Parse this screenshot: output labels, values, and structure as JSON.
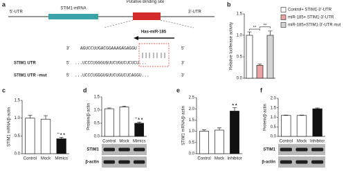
{
  "diagram": {
    "panel": "a",
    "utr5": "5'-UTR",
    "gene": "STIM1-mRNA",
    "site": "Putative Binding site",
    "utr3": "3'-UTR",
    "mirna": "Has-miR-185",
    "mirna_row": {
      "left": "3'",
      "seq": "AGUCCUUGACGGAAAGAGAGGU",
      "right": "5'"
    },
    "rows": [
      {
        "name": "STIM1 UTR",
        "left": "5'",
        "seq": "...UCCCUGGGUGUUCUGUCUCUCU...",
        "right": "3'"
      },
      {
        "name": "STIM1 UTR –mut",
        "left": "5'",
        "seq": "...UCCCUGGGUGUUCUGUCUCAGGU...",
        "right": "3'"
      }
    ]
  },
  "chart_data": [
    {
      "type": "bar",
      "panel": "b",
      "ylabel": "Relative luciferase activity",
      "categories": [
        null,
        null,
        null
      ],
      "values": [
        1.0,
        0.3,
        1.0
      ],
      "errors": [
        0.08,
        0.03,
        0.1
      ],
      "colors": [
        "#ffffff",
        "#e8a3a3",
        "#d4d4d4"
      ],
      "legend": [
        "Control+ STIM1-3'-UTR",
        "miR-185+ STIM1-3'-UTR",
        "miR-185+STIM1-3'-UTR mut"
      ],
      "annotations": [
        "**",
        "**"
      ],
      "ylim": [
        0,
        1.5
      ],
      "yticks": [
        {
          "value": 0,
          "label": "0.0"
        },
        0.5,
        {
          "value": 1,
          "label": "1.0"
        },
        1.5
      ]
    },
    {
      "type": "bar",
      "panel": "c",
      "ylabel": "STIM1 mRNA/β-actin",
      "categories": [
        "Control",
        "Mock",
        "Mimics"
      ],
      "values": [
        1.0,
        0.97,
        0.42
      ],
      "errors": [
        0.08,
        0.1,
        0.04
      ],
      "colors": [
        "#ffffff",
        "#ffffff",
        "#111111"
      ],
      "annotations": [
        "**▲▲"
      ],
      "ylim": [
        0,
        1.5
      ],
      "yticks": [
        {
          "value": 0,
          "label": "0.0"
        },
        0.5,
        {
          "value": 1,
          "label": "1.0"
        },
        1.5
      ]
    },
    {
      "type": "bar",
      "panel": "d",
      "ylabel": "Protein/β-actin",
      "categories": [
        "Control",
        "Mock",
        "Mimics"
      ],
      "values": [
        1.05,
        1.12,
        0.5
      ],
      "errors": [
        0.03,
        0.03,
        0.04
      ],
      "colors": [
        "#ffffff",
        "#ffffff",
        "#111111"
      ],
      "annotations": [
        "**▲▲"
      ],
      "ylim": [
        0,
        1.5
      ],
      "blot_labels": [
        "STIM1",
        "β-actin"
      ],
      "yticks": [
        {
          "value": 0,
          "label": "0.0"
        },
        0.5,
        {
          "value": 1,
          "label": "1.0"
        },
        1.5
      ]
    },
    {
      "type": "bar",
      "panel": "e",
      "ylabel": "STIM1 mRNA/β-actin",
      "categories": [
        "Control",
        "Mock",
        "Inhibitor"
      ],
      "values": [
        1.0,
        1.05,
        1.9
      ],
      "errors": [
        0.06,
        0.1,
        0.15
      ],
      "colors": [
        "#ffffff",
        "#ffffff",
        "#111111"
      ],
      "annotations": [
        "▲▲"
      ],
      "ylim": [
        0,
        2.5
      ],
      "yticks": [
        {
          "value": 0,
          "label": "0.0"
        },
        0.5,
        {
          "value": 1,
          "label": "1.0"
        },
        1.5,
        {
          "value": 2,
          "label": "2.0"
        },
        2.5
      ]
    },
    {
      "type": "bar",
      "panel": "f",
      "ylabel": "Protein/β-actin",
      "categories": [
        "Control",
        "Mock",
        "Inhibitor"
      ],
      "values": [
        1.1,
        1.1,
        1.45
      ],
      "errors": [
        0.02,
        0.02,
        0.04
      ],
      "colors": [
        "#ffffff",
        "#ffffff",
        "#111111"
      ],
      "annotations": [],
      "ylim": [
        0,
        2
      ],
      "blot_labels": [
        "STIM1",
        "β-actin"
      ],
      "yticks": [
        {
          "value": 0,
          "label": "0.0"
        },
        0.5,
        {
          "value": 1,
          "label": "1.0"
        },
        1.5,
        {
          "value": 2,
          "label": "2.0"
        }
      ]
    }
  ]
}
